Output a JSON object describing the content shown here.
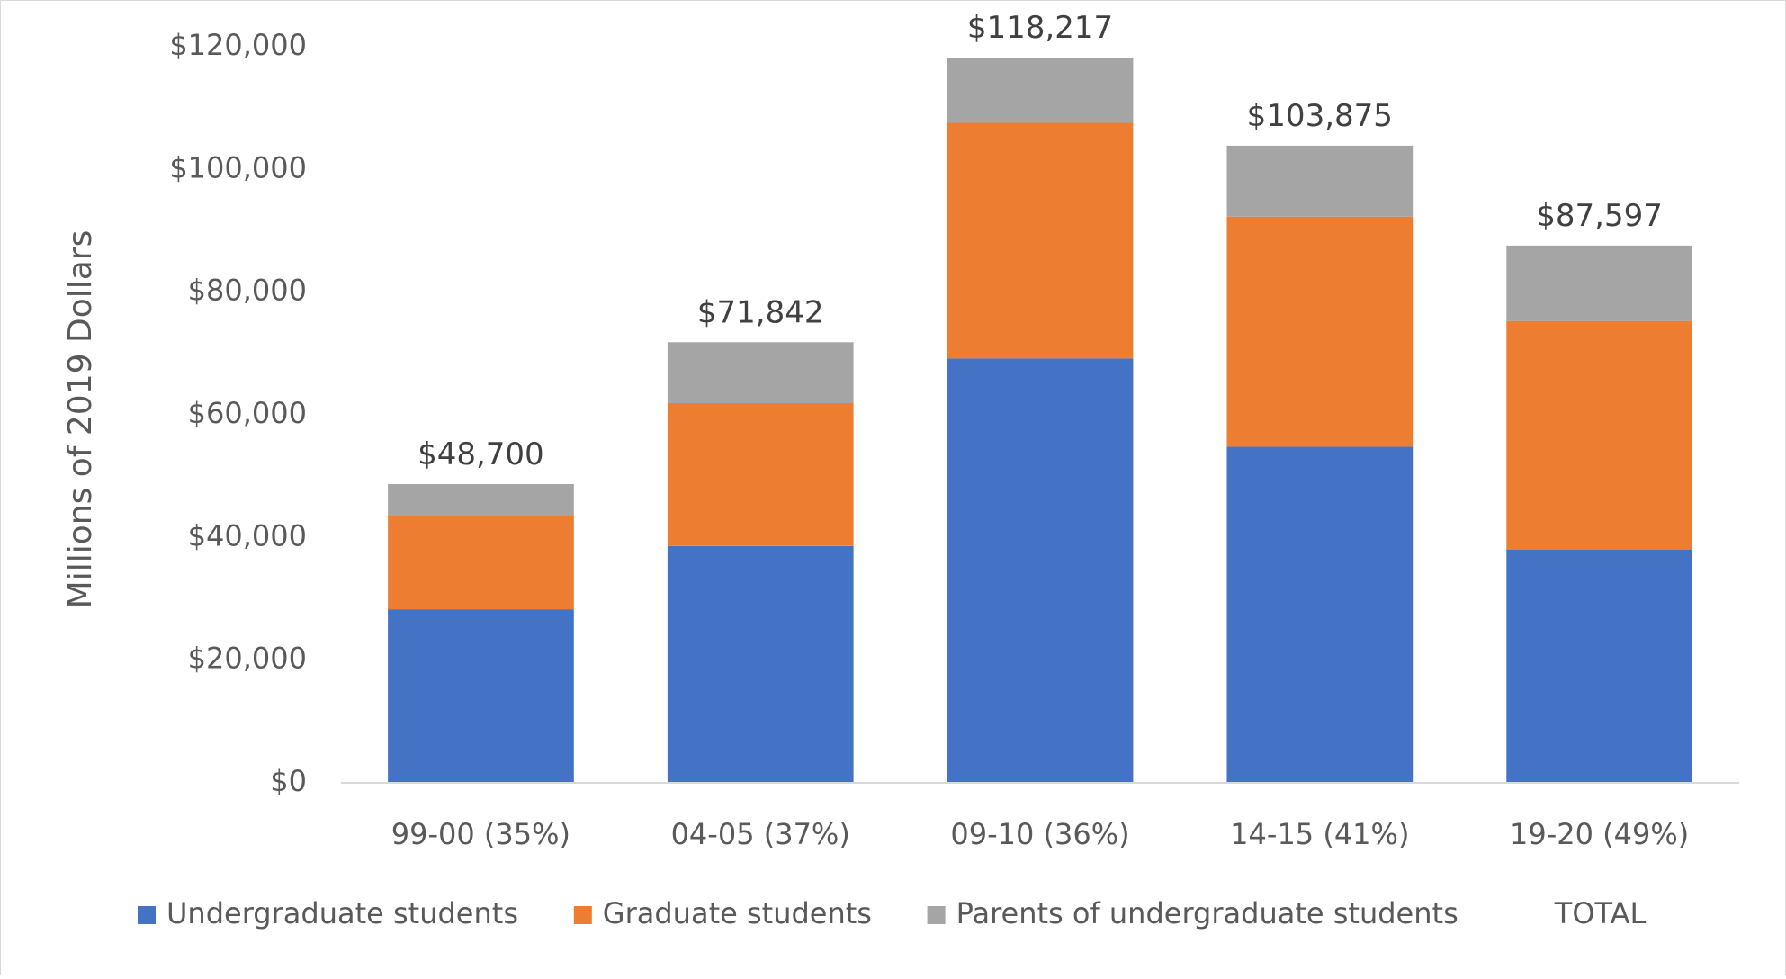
{
  "chart_data": {
    "type": "bar",
    "stacked": true,
    "categories": [
      "99-00 (35%)",
      "04-05 (37%)",
      "09-10 (36%)",
      "14-15 (41%)",
      "19-20 (49%)"
    ],
    "series": [
      {
        "name": "Undergraduate students",
        "color": "#4472C4",
        "values": [
          28300,
          38600,
          69200,
          54800,
          38000
        ]
      },
      {
        "name": "Graduate students",
        "color": "#ED7D31",
        "values": [
          15200,
          23300,
          38400,
          37500,
          37300
        ]
      },
      {
        "name": "Parents of undergraduate students",
        "color": "#A5A5A5",
        "values": [
          5200,
          9942,
          10617,
          11575,
          12297
        ]
      }
    ],
    "totals": {
      "name": "TOTAL",
      "values": [
        48700,
        71842,
        118217,
        103875,
        87597
      ],
      "labels": [
        "$48,700",
        "$71,842",
        "$118,217",
        "$103,875",
        "$87,597"
      ]
    },
    "title": "",
    "xlabel": "",
    "ylabel": "Millions of 2019 Dollars",
    "ylim": [
      0,
      120000
    ],
    "yticks": [
      0,
      20000,
      40000,
      60000,
      80000,
      100000,
      120000
    ],
    "ytick_labels": [
      "$0",
      "$20,000",
      "$40,000",
      "$60,000",
      "$80,000",
      "$100,000",
      "$120,000"
    ],
    "grid": false,
    "legend_position": "bottom"
  }
}
